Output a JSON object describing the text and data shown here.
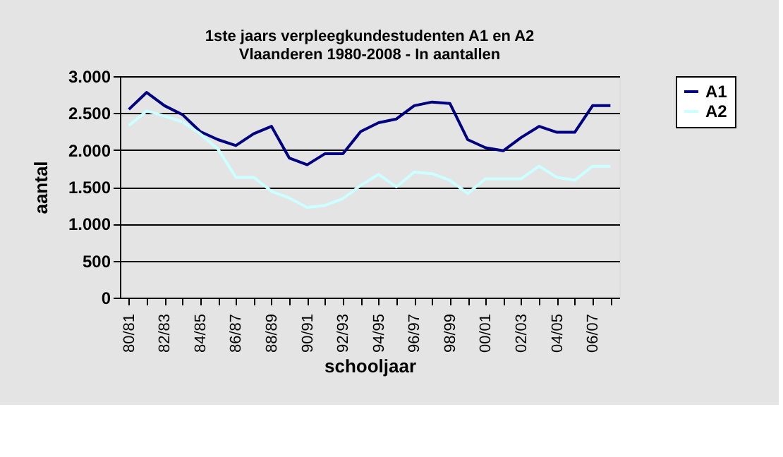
{
  "chart_data": {
    "type": "line",
    "title": "1ste jaars verpleegkundestudenten A1 en A2\nVlaanderen  1980-2008  - In aantallen",
    "xlabel": "schooljaar",
    "ylabel": "aantal",
    "categories": [
      "80/81",
      null,
      "82/83",
      null,
      "84/85",
      null,
      "86/87",
      null,
      "88/89",
      null,
      "90/91",
      null,
      "92/93",
      null,
      "94/95",
      null,
      "96/97",
      null,
      "98/99",
      null,
      "00/01",
      null,
      "02/03",
      null,
      "04/05",
      null,
      "06/07",
      null
    ],
    "series": [
      {
        "name": "A1",
        "color": "#000080",
        "values": [
          2550,
          2780,
          2600,
          2480,
          2250,
          2140,
          2060,
          2220,
          2320,
          1890,
          1800,
          1950,
          1950,
          2250,
          2370,
          2420,
          2600,
          2650,
          2630,
          2140,
          2030,
          1990,
          2170,
          2320,
          2240,
          2240,
          2600,
          2600
        ]
      },
      {
        "name": "A2",
        "color": "#ccffff",
        "values": [
          2330,
          2530,
          2460,
          2380,
          2220,
          2010,
          1630,
          1630,
          1440,
          1350,
          1220,
          1250,
          1340,
          1520,
          1670,
          1500,
          1700,
          1680,
          1590,
          1410,
          1610,
          1610,
          1610,
          1780,
          1630,
          1590,
          1780,
          1780
        ]
      }
    ],
    "ylim": [
      0,
      3000
    ],
    "yticks": [
      0,
      {
        "value": 500,
        "label": "500"
      },
      {
        "value": 1000,
        "label": "1.000"
      },
      {
        "value": 1500,
        "label": "1.500"
      },
      {
        "value": 2000,
        "label": "2.000"
      },
      {
        "value": 2500,
        "label": "2.500"
      },
      {
        "value": 3000,
        "label": "3.000"
      }
    ],
    "grid": "y",
    "legend": "right",
    "marker": "none",
    "line_style": "solid"
  }
}
